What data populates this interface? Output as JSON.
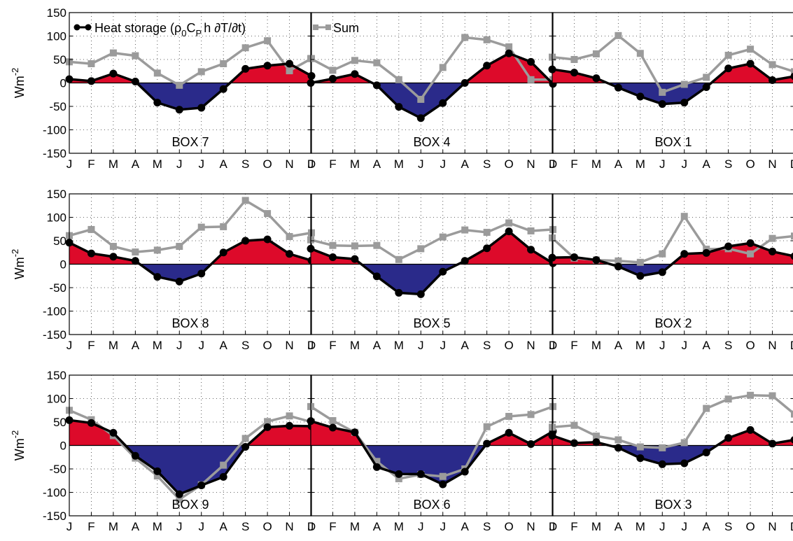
{
  "colors": {
    "pos_fill": "#dd0a2a",
    "neg_fill": "#2a2a8a",
    "heat_line": "#000000",
    "sum_line": "#9b9b9b",
    "grid": "#333333"
  },
  "chart_data": [
    {
      "type": "line",
      "label": "BOX 7",
      "ylabel": "Wm",
      "ylabel_sup": "-2",
      "ylim": [
        -150,
        150
      ],
      "yticks": [
        150,
        100,
        50,
        0,
        -50,
        -100,
        -150
      ],
      "categories": [
        "J",
        "F",
        "M",
        "A",
        "M",
        "J",
        "J",
        "A",
        "S",
        "O",
        "N",
        "D"
      ],
      "series": [
        {
          "name": "Heat storage (ρ₀Cₚh ∂T/∂t)",
          "values": [
            8,
            4,
            20,
            3,
            -42,
            -57,
            -53,
            -13,
            30,
            37,
            41,
            15
          ]
        },
        {
          "name": "Sum",
          "values": [
            45,
            41,
            64,
            58,
            21,
            -5,
            24,
            41,
            75,
            90,
            26,
            52
          ]
        }
      ]
    },
    {
      "type": "line",
      "label": "BOX 4",
      "ylim": [
        -150,
        150
      ],
      "categories": [
        "J",
        "F",
        "M",
        "A",
        "M",
        "J",
        "J",
        "A",
        "S",
        "O",
        "N",
        "D"
      ],
      "series": [
        {
          "name": "Heat storage (ρ₀Cₚh ∂T/∂t)",
          "values": [
            0,
            9,
            19,
            -5,
            -51,
            -75,
            -43,
            0,
            37,
            63,
            45,
            -2
          ]
        },
        {
          "name": "Sum",
          "values": [
            52,
            27,
            48,
            43,
            7,
            -35,
            33,
            97,
            92,
            77,
            7,
            7
          ]
        }
      ]
    },
    {
      "type": "line",
      "label": "BOX 1",
      "ylim": [
        -150,
        150
      ],
      "categories": [
        "J",
        "F",
        "M",
        "A",
        "M",
        "J",
        "J",
        "A",
        "S",
        "O",
        "N",
        "D"
      ],
      "series": [
        {
          "name": "Heat storage (ρ₀Cₚh ∂T/∂t)",
          "values": [
            29,
            22,
            10,
            -10,
            -29,
            -45,
            -42,
            -9,
            31,
            41,
            6,
            14
          ]
        },
        {
          "name": "Sum",
          "values": [
            55,
            50,
            62,
            101,
            63,
            -20,
            -3,
            12,
            59,
            72,
            39,
            24
          ]
        }
      ]
    },
    {
      "type": "line",
      "label": "BOX 8",
      "ylabel": "Wm",
      "ylabel_sup": "-2",
      "ylim": [
        -150,
        150
      ],
      "yticks": [
        150,
        100,
        50,
        0,
        -50,
        -100,
        -150
      ],
      "categories": [
        "J",
        "F",
        "M",
        "A",
        "M",
        "J",
        "J",
        "A",
        "S",
        "O",
        "N",
        "D"
      ],
      "series": [
        {
          "name": "Heat storage (ρ₀Cₚh ∂T/∂t)",
          "values": [
            46,
            23,
            16,
            7,
            -27,
            -37,
            -20,
            25,
            50,
            53,
            22,
            8
          ]
        },
        {
          "name": "Sum",
          "values": [
            61,
            74,
            38,
            26,
            30,
            38,
            79,
            80,
            136,
            108,
            59,
            67
          ]
        }
      ]
    },
    {
      "type": "line",
      "label": "BOX 5",
      "ylim": [
        -150,
        150
      ],
      "categories": [
        "J",
        "F",
        "M",
        "A",
        "M",
        "J",
        "J",
        "A",
        "S",
        "O",
        "N",
        "D"
      ],
      "series": [
        {
          "name": "Heat storage (ρ₀Cₚh ∂T/∂t)",
          "values": [
            33,
            15,
            11,
            -26,
            -61,
            -64,
            -16,
            7,
            34,
            70,
            31,
            2
          ]
        },
        {
          "name": "Sum",
          "values": [
            52,
            40,
            39,
            40,
            10,
            33,
            58,
            73,
            68,
            88,
            71,
            74
          ]
        }
      ]
    },
    {
      "type": "line",
      "label": "BOX 2",
      "ylim": [
        -150,
        150
      ],
      "categories": [
        "J",
        "F",
        "M",
        "A",
        "M",
        "J",
        "J",
        "A",
        "S",
        "O",
        "N",
        "D"
      ],
      "series": [
        {
          "name": "Heat storage (ρ₀Cₚh ∂T/∂t)",
          "values": [
            14,
            15,
            9,
            -5,
            -25,
            -17,
            22,
            24,
            38,
            45,
            27,
            17
          ]
        },
        {
          "name": "Sum",
          "values": [
            56,
            13,
            9,
            7,
            4,
            22,
            102,
            32,
            33,
            22,
            55,
            60
          ]
        }
      ]
    },
    {
      "type": "line",
      "label": "BOX 9",
      "ylabel": "Wm",
      "ylabel_sup": "-2",
      "ylim": [
        -150,
        150
      ],
      "yticks": [
        150,
        100,
        50,
        0,
        -50,
        -100,
        -150
      ],
      "categories": [
        "J",
        "F",
        "M",
        "A",
        "M",
        "J",
        "J",
        "A",
        "S",
        "O",
        "N",
        "D"
      ],
      "series": [
        {
          "name": "Heat storage (ρ₀Cₚh ∂T/∂t)",
          "values": [
            54,
            48,
            27,
            -22,
            -55,
            -104,
            -85,
            -67,
            -3,
            39,
            42,
            41
          ]
        },
        {
          "name": "Sum",
          "values": [
            75,
            55,
            21,
            -27,
            -65,
            -115,
            -84,
            -42,
            15,
            51,
            63,
            50
          ]
        }
      ]
    },
    {
      "type": "line",
      "label": "BOX 6",
      "ylim": [
        -150,
        150
      ],
      "categories": [
        "J",
        "F",
        "M",
        "A",
        "M",
        "J",
        "J",
        "A",
        "S",
        "O",
        "N",
        "D"
      ],
      "series": [
        {
          "name": "Heat storage (ρ₀Cₚh ∂T/∂t)",
          "values": [
            52,
            38,
            28,
            -46,
            -61,
            -61,
            -83,
            -56,
            4,
            27,
            3,
            30
          ]
        },
        {
          "name": "Sum",
          "values": [
            83,
            53,
            28,
            -34,
            -71,
            -62,
            -66,
            -50,
            40,
            62,
            66,
            83
          ]
        }
      ]
    },
    {
      "type": "line",
      "label": "BOX 3",
      "ylim": [
        -150,
        150
      ],
      "categories": [
        "J",
        "F",
        "M",
        "A",
        "M",
        "J",
        "J",
        "A",
        "S",
        "O",
        "N",
        "D"
      ],
      "series": [
        {
          "name": "Heat storage (ρ₀Cₚh ∂T/∂t)",
          "values": [
            21,
            5,
            7,
            -5,
            -27,
            -40,
            -38,
            -15,
            16,
            33,
            4,
            12
          ]
        },
        {
          "name": "Sum",
          "values": [
            39,
            43,
            20,
            12,
            -3,
            -5,
            6,
            79,
            99,
            107,
            106,
            67
          ]
        }
      ]
    }
  ],
  "legend": {
    "heat": "Heat storage (ρ",
    "heat_sub1": "0",
    "heat_mid": "C",
    "heat_sub2": "P",
    "heat_end": "h ∂T/∂t)",
    "sum": "Sum"
  }
}
